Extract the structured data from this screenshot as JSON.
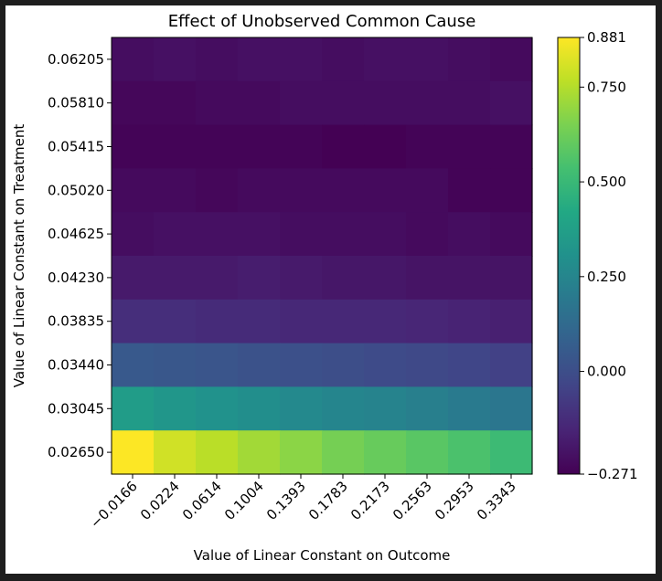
{
  "chart_data": {
    "type": "heatmap",
    "title": "Effect of Unobserved Common Cause",
    "xlabel": "Value of Linear Constant on Outcome",
    "ylabel": "Value of Linear Constant on Treatment",
    "x_ticks": [
      "−0.0166",
      "0.0224",
      "0.0614",
      "0.1004",
      "0.1393",
      "0.1783",
      "0.2173",
      "0.2563",
      "0.2953",
      "0.3343"
    ],
    "y_ticks": [
      "0.06205",
      "0.05810",
      "0.05415",
      "0.05020",
      "0.04625",
      "0.04230",
      "0.03835",
      "0.03440",
      "0.03045",
      "0.02650"
    ],
    "values": [
      [
        -0.23,
        -0.22,
        -0.23,
        -0.22,
        -0.22,
        -0.23,
        -0.22,
        -0.22,
        -0.23,
        -0.24
      ],
      [
        -0.25,
        -0.25,
        -0.24,
        -0.24,
        -0.23,
        -0.23,
        -0.23,
        -0.23,
        -0.23,
        -0.22
      ],
      [
        -0.26,
        -0.26,
        -0.26,
        -0.26,
        -0.26,
        -0.27,
        -0.27,
        -0.26,
        -0.26,
        -0.26
      ],
      [
        -0.24,
        -0.24,
        -0.25,
        -0.24,
        -0.24,
        -0.24,
        -0.24,
        -0.24,
        -0.26,
        -0.26
      ],
      [
        -0.23,
        -0.22,
        -0.22,
        -0.22,
        -0.23,
        -0.23,
        -0.23,
        -0.24,
        -0.23,
        -0.24
      ],
      [
        -0.19,
        -0.19,
        -0.19,
        -0.18,
        -0.19,
        -0.2,
        -0.2,
        -0.21,
        -0.21,
        -0.21
      ],
      [
        -0.12,
        -0.12,
        -0.13,
        -0.13,
        -0.14,
        -0.14,
        -0.14,
        -0.15,
        -0.16,
        -0.17
      ],
      [
        0.05,
        0.04,
        0.03,
        0.02,
        0.01,
        0.0,
        -0.01,
        -0.02,
        -0.03,
        -0.05
      ],
      [
        0.36,
        0.33,
        0.31,
        0.29,
        0.27,
        0.25,
        0.24,
        0.22,
        0.2,
        0.18
      ],
      [
        0.88,
        0.8,
        0.76,
        0.72,
        0.68,
        0.64,
        0.61,
        0.58,
        0.55,
        0.51
      ]
    ],
    "colormap": "viridis",
    "colorbar": {
      "min": -0.271,
      "max": 0.881,
      "tick_values": [
        -0.271,
        0.0,
        0.25,
        0.5,
        0.75,
        0.881
      ],
      "tick_labels": [
        "−0.271",
        "0.000",
        "0.250",
        "0.500",
        "0.750",
        "0.881"
      ]
    },
    "grid": false
  }
}
